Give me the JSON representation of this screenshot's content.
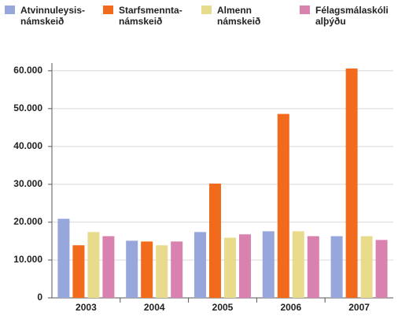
{
  "chart_data": {
    "type": "bar",
    "categories": [
      "2003",
      "2004",
      "2005",
      "2006",
      "2007"
    ],
    "series": [
      {
        "name": "Atvinnuleysis-\nnámskeið",
        "color": "#97a6db",
        "values": [
          20900,
          15100,
          17400,
          17600,
          16300
        ]
      },
      {
        "name": "Starfsmennta-\nnámskeið",
        "color": "#f26b1d",
        "values": [
          13900,
          14900,
          30200,
          48600,
          60600
        ]
      },
      {
        "name": "Almenn\nnámskeið",
        "color": "#e8dc8c",
        "values": [
          17400,
          13900,
          15900,
          17600,
          16300
        ]
      },
      {
        "name": "Félagsmálaskóli\nalþýðu",
        "color": "#d982b0",
        "values": [
          16300,
          14900,
          16800,
          16300,
          15300
        ]
      }
    ],
    "ylim": [
      0,
      61000
    ],
    "yticks": [
      0,
      {
        "value": 10000,
        "label": "10.000"
      },
      {
        "value": 20000,
        "label": "20.000"
      },
      {
        "value": 30000,
        "label": "30.000"
      },
      {
        "value": 40000,
        "label": "40.000"
      },
      {
        "value": 50000,
        "label": "50.000"
      },
      {
        "value": 60000,
        "label": "60.000"
      }
    ],
    "grid": true
  }
}
